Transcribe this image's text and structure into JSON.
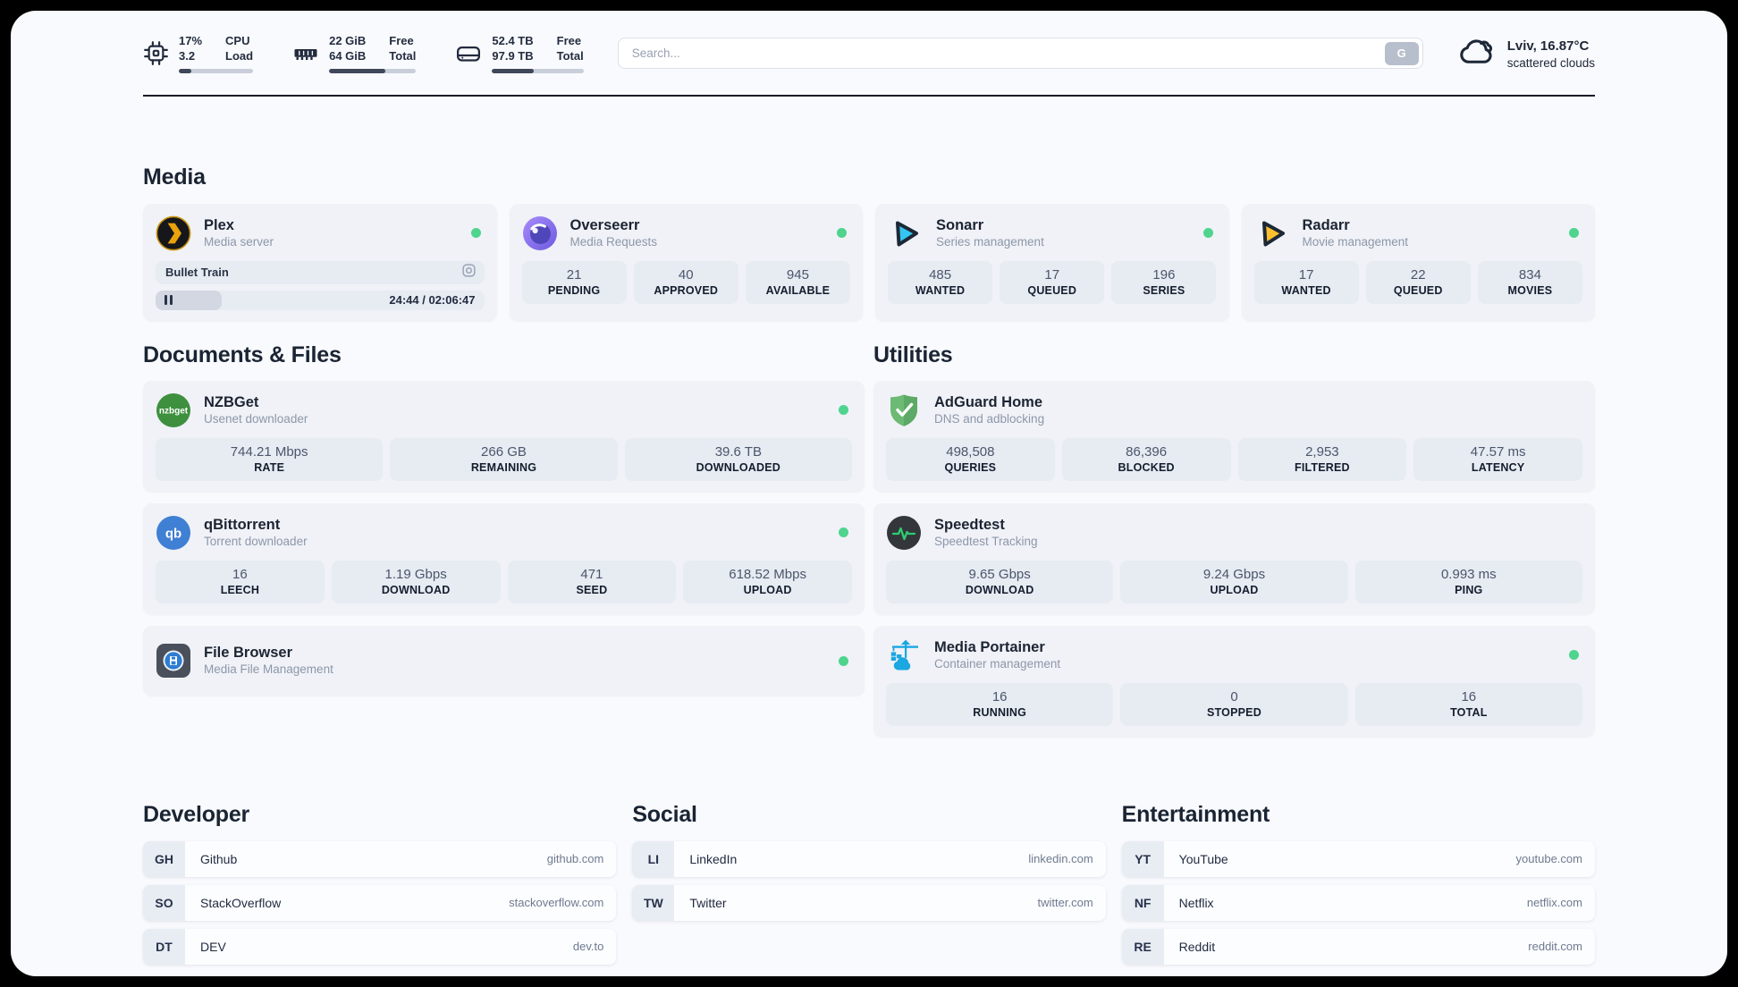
{
  "header": {
    "cpu": {
      "v1": "17%",
      "v2": "3.2",
      "l1": "CPU",
      "l2": "Load",
      "progress": 17
    },
    "memory": {
      "v1": "22 GiB",
      "v2": "64 GiB",
      "l1": "Free",
      "l2": "Total",
      "progress": 65
    },
    "disk": {
      "v1": "52.4 TB",
      "v2": "97.9 TB",
      "l1": "Free",
      "l2": "Total",
      "progress": 46
    },
    "search": {
      "placeholder": "Search...",
      "button_label": "G"
    },
    "weather": {
      "summary": "Lviv, 16.87°C",
      "condition": "scattered clouds"
    }
  },
  "sections": {
    "media": "Media",
    "documents": "Documents & Files",
    "utilities": "Utilities",
    "developer": "Developer",
    "social": "Social",
    "entertainment": "Entertainment"
  },
  "apps": {
    "plex": {
      "name": "Plex",
      "desc": "Media server",
      "now_playing": "Bullet Train",
      "time": "24:44 / 02:06:47",
      "progress_pct": 20
    },
    "overseerr": {
      "name": "Overseerr",
      "desc": "Media Requests",
      "stats": [
        {
          "value": "21",
          "label": "PENDING"
        },
        {
          "value": "40",
          "label": "APPROVED"
        },
        {
          "value": "945",
          "label": "AVAILABLE"
        }
      ]
    },
    "sonarr": {
      "name": "Sonarr",
      "desc": "Series management",
      "stats": [
        {
          "value": "485",
          "label": "WANTED"
        },
        {
          "value": "17",
          "label": "QUEUED"
        },
        {
          "value": "196",
          "label": "SERIES"
        }
      ]
    },
    "radarr": {
      "name": "Radarr",
      "desc": "Movie management",
      "stats": [
        {
          "value": "17",
          "label": "WANTED"
        },
        {
          "value": "22",
          "label": "QUEUED"
        },
        {
          "value": "834",
          "label": "MOVIES"
        }
      ]
    },
    "nzbget": {
      "name": "NZBGet",
      "desc": "Usenet downloader",
      "stats": [
        {
          "value": "744.21 Mbps",
          "label": "RATE"
        },
        {
          "value": "266 GB",
          "label": "REMAINING"
        },
        {
          "value": "39.6 TB",
          "label": "DOWNLOADED"
        }
      ]
    },
    "qbittorrent": {
      "name": "qBittorrent",
      "desc": "Torrent downloader",
      "stats": [
        {
          "value": "16",
          "label": "LEECH"
        },
        {
          "value": "1.19 Gbps",
          "label": "DOWNLOAD"
        },
        {
          "value": "471",
          "label": "SEED"
        },
        {
          "value": "618.52 Mbps",
          "label": "UPLOAD"
        }
      ]
    },
    "filebrowser": {
      "name": "File Browser",
      "desc": "Media File Management"
    },
    "adguard": {
      "name": "AdGuard Home",
      "desc": "DNS and adblocking",
      "stats": [
        {
          "value": "498,508",
          "label": "QUERIES"
        },
        {
          "value": "86,396",
          "label": "BLOCKED"
        },
        {
          "value": "2,953",
          "label": "FILTERED"
        },
        {
          "value": "47.57 ms",
          "label": "LATENCY"
        }
      ]
    },
    "speedtest": {
      "name": "Speedtest",
      "desc": "Speedtest Tracking",
      "stats": [
        {
          "value": "9.65 Gbps",
          "label": "DOWNLOAD"
        },
        {
          "value": "9.24 Gbps",
          "label": "UPLOAD"
        },
        {
          "value": "0.993 ms",
          "label": "PING"
        }
      ]
    },
    "portainer": {
      "name": "Media Portainer",
      "desc": "Container management",
      "stats": [
        {
          "value": "16",
          "label": "RUNNING"
        },
        {
          "value": "0",
          "label": "STOPPED"
        },
        {
          "value": "16",
          "label": "TOTAL"
        }
      ]
    }
  },
  "bookmarks": {
    "developer": [
      {
        "abbr": "GH",
        "name": "Github",
        "url": "github.com"
      },
      {
        "abbr": "SO",
        "name": "StackOverflow",
        "url": "stackoverflow.com"
      },
      {
        "abbr": "DT",
        "name": "DEV",
        "url": "dev.to"
      }
    ],
    "social": [
      {
        "abbr": "LI",
        "name": "LinkedIn",
        "url": "linkedin.com"
      },
      {
        "abbr": "TW",
        "name": "Twitter",
        "url": "twitter.com"
      }
    ],
    "entertainment": [
      {
        "abbr": "YT",
        "name": "YouTube",
        "url": "youtube.com"
      },
      {
        "abbr": "NF",
        "name": "Netflix",
        "url": "netflix.com"
      },
      {
        "abbr": "RE",
        "name": "Reddit",
        "url": "reddit.com"
      }
    ]
  },
  "colors": {
    "status_online": "#4fd48d",
    "accent_dark": "#222b3d",
    "progress_fill": "#3e4859"
  }
}
